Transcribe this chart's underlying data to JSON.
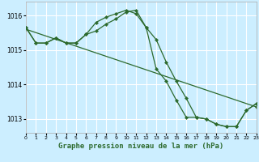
{
  "xlabel": "Graphe pression niveau de la mer (hPa)",
  "bg_color": "#cceeff",
  "grid_color": "#ffffff",
  "line_color": "#2d6a2d",
  "x_hours": [
    0,
    1,
    2,
    3,
    4,
    5,
    6,
    7,
    8,
    9,
    10,
    11,
    12,
    13,
    14,
    15,
    16,
    17,
    18,
    19,
    20,
    21,
    22,
    23
  ],
  "line1": [
    1015.65,
    1015.2,
    1015.2,
    1015.35,
    1015.2,
    1015.2,
    1015.45,
    1015.55,
    1015.75,
    1015.9,
    1016.1,
    1016.15,
    1015.65,
    1015.3,
    1014.65,
    1014.1,
    1013.6,
    1013.05,
    1013.0,
    1012.85,
    1012.78,
    1012.78,
    1013.25,
    1013.45
  ],
  "line2": [
    1015.65,
    1015.2,
    1015.2,
    1015.35,
    1015.2,
    1015.2,
    1015.45,
    1015.8,
    1015.95,
    1016.05,
    1016.15,
    1016.05,
    1015.65,
    1014.45,
    1014.1,
    1013.55,
    1013.05,
    1013.05,
    1013.0,
    1012.85,
    1012.78,
    1012.78,
    1013.25,
    1013.45
  ],
  "line3_x": [
    0,
    23
  ],
  "line3_y": [
    1015.6,
    1013.35
  ],
  "ylim": [
    1012.6,
    1016.4
  ],
  "yticks": [
    1013,
    1014,
    1015,
    1016
  ],
  "xlim": [
    0,
    23
  ],
  "xtick_fontsize": 4.5,
  "ytick_fontsize": 5.5,
  "xlabel_fontsize": 6.5
}
